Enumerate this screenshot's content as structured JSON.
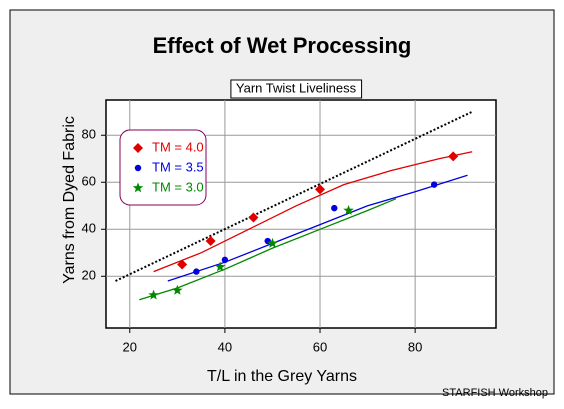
{
  "chart_data": {
    "type": "scatter",
    "title": "Effect of Wet Processing",
    "subtitle": "Yarn Twist Liveliness",
    "x_label": "T/L in the Grey Yarns",
    "y_label": "Yarns from Dyed Fabric",
    "footer": "STARFISH Workshop",
    "xlim": [
      15,
      97
    ],
    "xticks": [
      20,
      40,
      60,
      80
    ],
    "ylim": [
      -2,
      95
    ],
    "yticks": [
      20,
      40,
      60,
      80
    ],
    "grid": true,
    "legend": "upper left",
    "reference_line": {
      "x": [
        17,
        92
      ],
      "y": [
        18,
        90
      ],
      "color": "#000000"
    },
    "series": [
      {
        "name": "TM = 4.0",
        "color": "#e00000",
        "marker": "diamond",
        "x": [
          31,
          37,
          46,
          60,
          88
        ],
        "values": [
          25,
          35,
          45,
          57,
          71
        ],
        "fit_x": [
          25,
          35,
          45,
          55,
          65,
          75,
          85,
          92
        ],
        "fit_y": [
          22,
          30,
          40,
          50,
          59,
          65,
          70,
          73
        ]
      },
      {
        "name": "TM = 3.5",
        "color": "#0000dd",
        "marker": "circle",
        "x": [
          34,
          40,
          49,
          63,
          84
        ],
        "values": [
          22,
          27,
          35,
          49,
          59
        ],
        "fit_x": [
          28,
          40,
          50,
          60,
          70,
          80,
          91
        ],
        "fit_y": [
          18,
          26,
          34,
          42,
          50,
          56,
          63
        ]
      },
      {
        "name": "TM = 3.0",
        "color": "#008800",
        "marker": "star",
        "x": [
          25,
          30,
          39,
          50,
          66
        ],
        "values": [
          12,
          14,
          24,
          34,
          48
        ],
        "fit_x": [
          22,
          30,
          40,
          50,
          60,
          70,
          76
        ],
        "fit_y": [
          10,
          15,
          23,
          32,
          40,
          48,
          53
        ]
      }
    ]
  }
}
